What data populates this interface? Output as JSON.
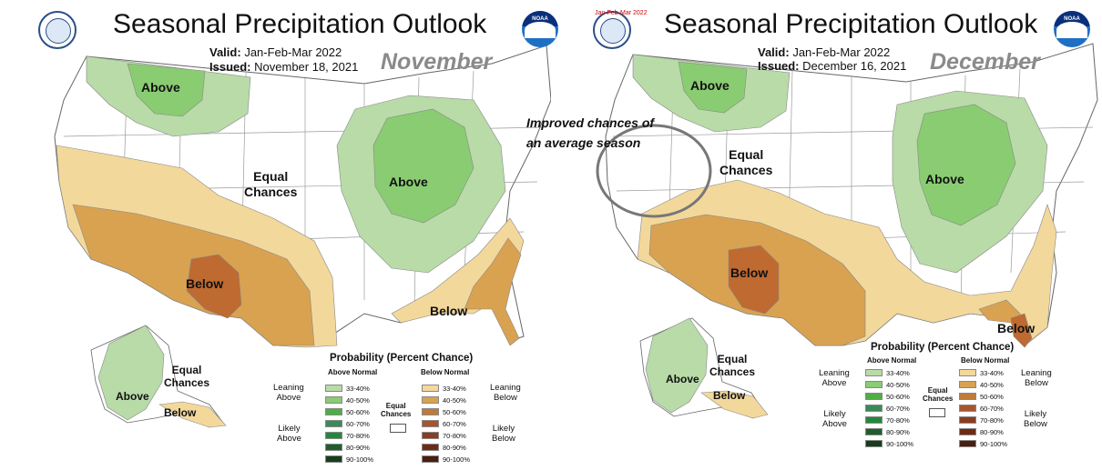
{
  "left": {
    "title": "Seasonal Precipitation Outlook",
    "valid_label": "Valid:",
    "valid": "Jan-Feb-Mar 2022",
    "issued_label": "Issued:",
    "issued": "November 18, 2021",
    "month": "November",
    "labels": {
      "above_nw": "Above",
      "above_gl": "Above",
      "equal_line1": "Equal",
      "equal_line2": "Chances",
      "below_sw": "Below",
      "below_se": "Below",
      "ak_equal_line1": "Equal",
      "ak_equal_line2": "Chances",
      "ak_above": "Above",
      "ak_below": "Below"
    }
  },
  "right": {
    "title": "Seasonal Precipitation Outlook",
    "stamp": "Jan-Feb-Mar 2022",
    "valid_label": "Valid:",
    "valid": "Jan-Feb-Mar 2022",
    "issued_label": "Issued:",
    "issued": "December 16, 2021",
    "month": "December",
    "annotation_line1": "Improved chances of",
    "annotation_line2": "an average season",
    "labels": {
      "above_nw": "Above",
      "above_gl": "Above",
      "equal_line1": "Equal",
      "equal_line2": "Chances",
      "below_sw": "Below",
      "below_se": "Below",
      "ak_equal_line1": "Equal",
      "ak_equal_line2": "Chances",
      "ak_above": "Above",
      "ak_below": "Below"
    }
  },
  "legend": {
    "title": "Probability (Percent Chance)",
    "above_header": "Above Normal",
    "below_header": "Below Normal",
    "leaning_above_1": "Leaning",
    "leaning_above_2": "Above",
    "likely_above_1": "Likely",
    "likely_above_2": "Above",
    "leaning_below_1": "Leaning",
    "leaning_below_2": "Below",
    "likely_below_1": "Likely",
    "likely_below_2": "Below",
    "equal_1": "Equal",
    "equal_2": "Chances",
    "above_bins": [
      {
        "label": "33-40%",
        "color": "#b8dba8"
      },
      {
        "label": "40-50%",
        "color": "#8acc72"
      },
      {
        "label": "50-60%",
        "color": "#4fad45"
      },
      {
        "label": "60-70%",
        "color": "#3b8a58"
      },
      {
        "label": "70-80%",
        "color": "#23893a"
      },
      {
        "label": "80-90%",
        "color": "#1f5e2c"
      },
      {
        "label": "90-100%",
        "color": "#173d1c"
      }
    ],
    "below_bins": [
      {
        "label": "33-40%",
        "color": "#f3d89c"
      },
      {
        "label": "40-50%",
        "color": "#d9a251"
      },
      {
        "label": "50-60%",
        "color": "#bf7a3a"
      },
      {
        "label": "60-70%",
        "color": "#a8542d"
      },
      {
        "label": "70-80%",
        "color": "#8c3c20"
      },
      {
        "label": "80-90%",
        "color": "#6e2a15"
      },
      {
        "label": "90-100%",
        "color": "#4a1e10"
      }
    ]
  },
  "colors": {
    "above_leaning": "#b8dba8",
    "above_40": "#8acc72",
    "below_leaning": "#f3d89c",
    "below_40": "#d9a251",
    "below_50": "#bf6a30"
  }
}
